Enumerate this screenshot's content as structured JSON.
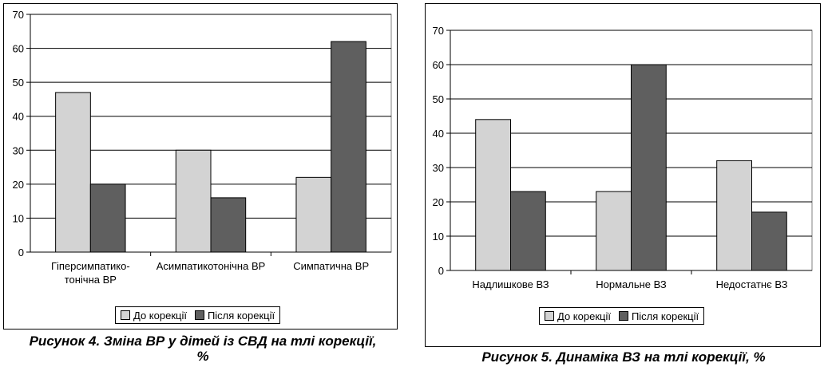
{
  "chart_data": [
    {
      "type": "bar",
      "caption": "Рисунок 4. Зміна ВР у дітей із СВД на тлі корекції, %",
      "caption_lines": [
        "Рисунок 4. Зміна ВР у дітей із СВД на тлі корекції,",
        "%"
      ],
      "categories": [
        [
          "Гіперсимпатико-",
          "тонічна ВР"
        ],
        [
          "Асимпатикотонічна ВР"
        ],
        [
          "Симпатична ВР"
        ]
      ],
      "series": [
        {
          "name": "До корекції",
          "values": [
            47,
            30,
            22
          ],
          "color": "#d3d3d3"
        },
        {
          "name": "Після корекції",
          "values": [
            20,
            16,
            62
          ],
          "color": "#5f5f5f"
        }
      ],
      "ylim": [
        0,
        70
      ],
      "yticks": [
        0,
        10,
        20,
        30,
        40,
        50,
        60,
        70
      ],
      "grid": true,
      "legend": "bottom"
    },
    {
      "type": "bar",
      "caption": "Рисунок 5. Динаміка ВЗ на тлі корекції, %",
      "caption_lines": [
        "Рисунок 5. Динаміка ВЗ на тлі корекції, %"
      ],
      "categories": [
        [
          "Надлишкове ВЗ"
        ],
        [
          "Нормальне ВЗ"
        ],
        [
          "Недостатнє ВЗ"
        ]
      ],
      "series": [
        {
          "name": "До корекції",
          "values": [
            44,
            23,
            32
          ],
          "color": "#d3d3d3"
        },
        {
          "name": "Після корекції",
          "values": [
            23,
            60,
            17
          ],
          "color": "#5f5f5f"
        }
      ],
      "ylim": [
        0,
        70
      ],
      "yticks": [
        0,
        10,
        20,
        30,
        40,
        50,
        60,
        70
      ],
      "grid": true,
      "legend": "bottom"
    }
  ]
}
